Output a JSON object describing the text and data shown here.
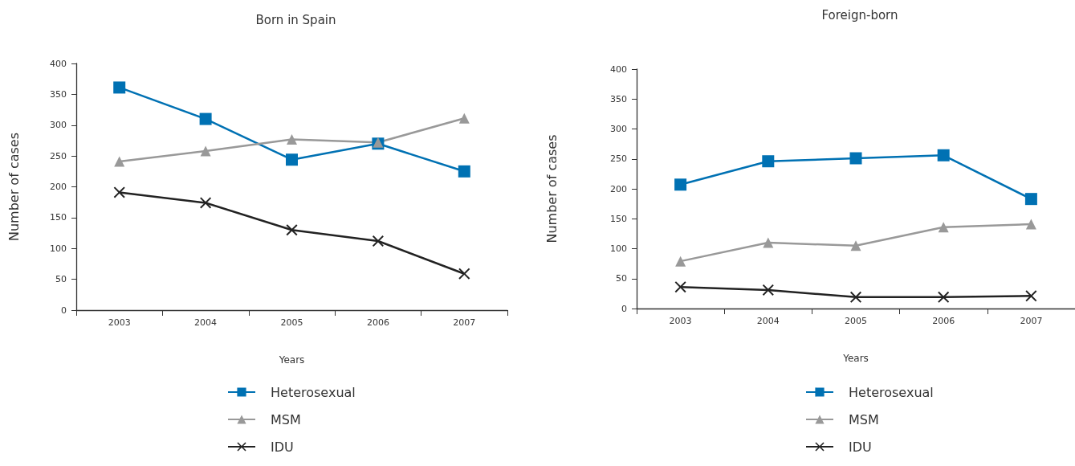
{
  "chart_data": [
    {
      "type": "line",
      "title": "Born in Spain",
      "xlabel": "Years",
      "ylabel": "Number of cases",
      "categories": [
        "2003",
        "2004",
        "2005",
        "2006",
        "2007"
      ],
      "ylim": [
        0,
        400
      ],
      "yticks": [
        0,
        50,
        100,
        150,
        200,
        250,
        300,
        350,
        400
      ],
      "grid": false,
      "legend": "bottom",
      "series": [
        {
          "name": "Heterosexual",
          "color": "#0071b3",
          "marker": "square",
          "values": [
            361,
            310,
            244,
            270,
            225
          ]
        },
        {
          "name": "MSM",
          "color": "#999999",
          "marker": "triangle",
          "values": [
            241,
            258,
            277,
            272,
            311
          ]
        },
        {
          "name": "IDU",
          "color": "#222222",
          "marker": "cross",
          "values": [
            191,
            174,
            130,
            112,
            59
          ]
        }
      ]
    },
    {
      "type": "line",
      "title": "Foreign-born",
      "xlabel": "Years",
      "ylabel": "Number of cases",
      "categories": [
        "2003",
        "2004",
        "2005",
        "2006",
        "2007"
      ],
      "ylim": [
        0,
        400
      ],
      "yticks": [
        0,
        50,
        100,
        150,
        200,
        250,
        300,
        350,
        400
      ],
      "grid": false,
      "legend": "bottom",
      "series": [
        {
          "name": "Heterosexual",
          "color": "#0071b3",
          "marker": "square",
          "values": [
            207,
            246,
            251,
            256,
            183
          ]
        },
        {
          "name": "MSM",
          "color": "#999999",
          "marker": "triangle",
          "values": [
            79,
            110,
            105,
            136,
            141
          ]
        },
        {
          "name": "IDU",
          "color": "#222222",
          "marker": "cross",
          "values": [
            36,
            31,
            19,
            19,
            21
          ]
        }
      ]
    }
  ]
}
